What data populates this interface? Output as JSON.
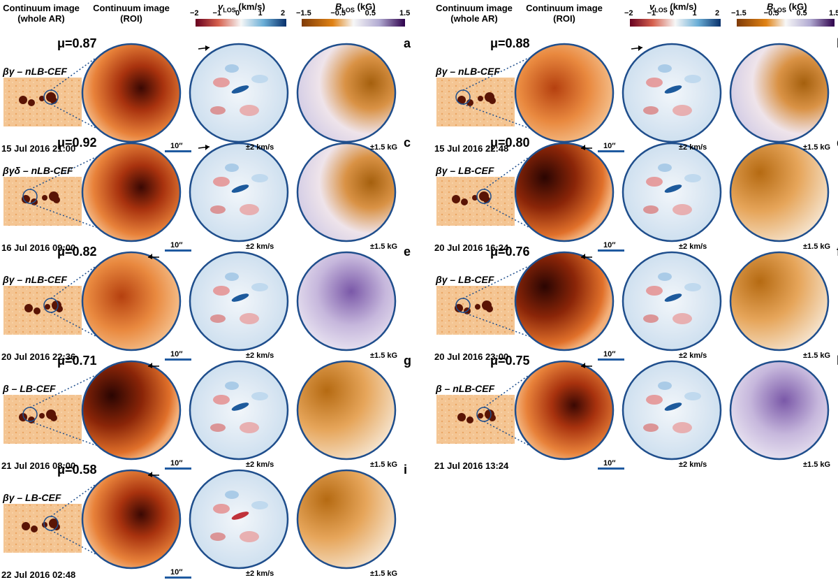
{
  "headers": {
    "whole_ar": [
      "Continuum image",
      "(whole AR)"
    ],
    "roi": [
      "Continuum image",
      "(ROI)"
    ],
    "vlos_title": "v",
    "vlos_sub": "LOS",
    "vlos_unit": " (km/s)",
    "blos_title": "B",
    "blos_sub": "LOS",
    "blos_unit": " (kG)",
    "vlos_ticks": [
      "−2",
      "−1",
      "0",
      "1",
      "2"
    ],
    "blos_ticks": [
      "−1.5",
      "−0.5",
      "0.5",
      "1.5"
    ]
  },
  "scale_label": "10″",
  "vlos_range": "±2 km/s",
  "blos_range": "±1.5 kG",
  "colors": {
    "circle_border": "#1f4e8c",
    "scale_bar": "#1f5aa0",
    "continuum_light": "#f7c79a",
    "continuum_dark": "#5a0f05",
    "vlos_red": "#b2182b",
    "vlos_blue": "#2166ac",
    "blos_orange": "#b8680c",
    "blos_purple": "#6a3d9a"
  },
  "panels": [
    {
      "letter": "a",
      "mu": "μ=0.87",
      "class": "βγ – nLB-CEF",
      "date": "15 Jul 2016 21:00",
      "arrow": "right"
    },
    {
      "letter": "c",
      "mu": "μ=0.92",
      "class": "βγδ – nLB-CEF",
      "date": "16 Jul 2016 09:00",
      "arrow": "right"
    },
    {
      "letter": "e",
      "mu": "μ=0.82",
      "class": "βγ – nLB-CEF",
      "date": "20 Jul 2016 22:36",
      "arrow": "left"
    },
    {
      "letter": "g",
      "mu": "μ=0.71",
      "class": "β – LB-CEF",
      "date": "21 Jul 2016 08:00",
      "arrow": "left"
    },
    {
      "letter": "i",
      "mu": "μ=0.58",
      "class": "βγ – LB-CEF",
      "date": "22 Jul 2016 02:48",
      "arrow": "left"
    },
    {
      "letter": "b",
      "mu": "μ=0.88",
      "class": "βγ – nLB-CEF",
      "date": "15 Jul 2016 22:48",
      "arrow": "right"
    },
    {
      "letter": "d",
      "mu": "μ=0.80",
      "class": "βγ – LB-CEF",
      "date": "20 Jul 2016 16:24",
      "arrow": "left"
    },
    {
      "letter": "f",
      "mu": "μ=0.76",
      "class": "βγ – LB-CEF",
      "date": "20 Jul 2016 23:00",
      "arrow": "left"
    },
    {
      "letter": "h",
      "mu": "μ=0.75",
      "class": "β – nLB-CEF",
      "date": "21 Jul 2016 13:24",
      "arrow": "left"
    }
  ]
}
